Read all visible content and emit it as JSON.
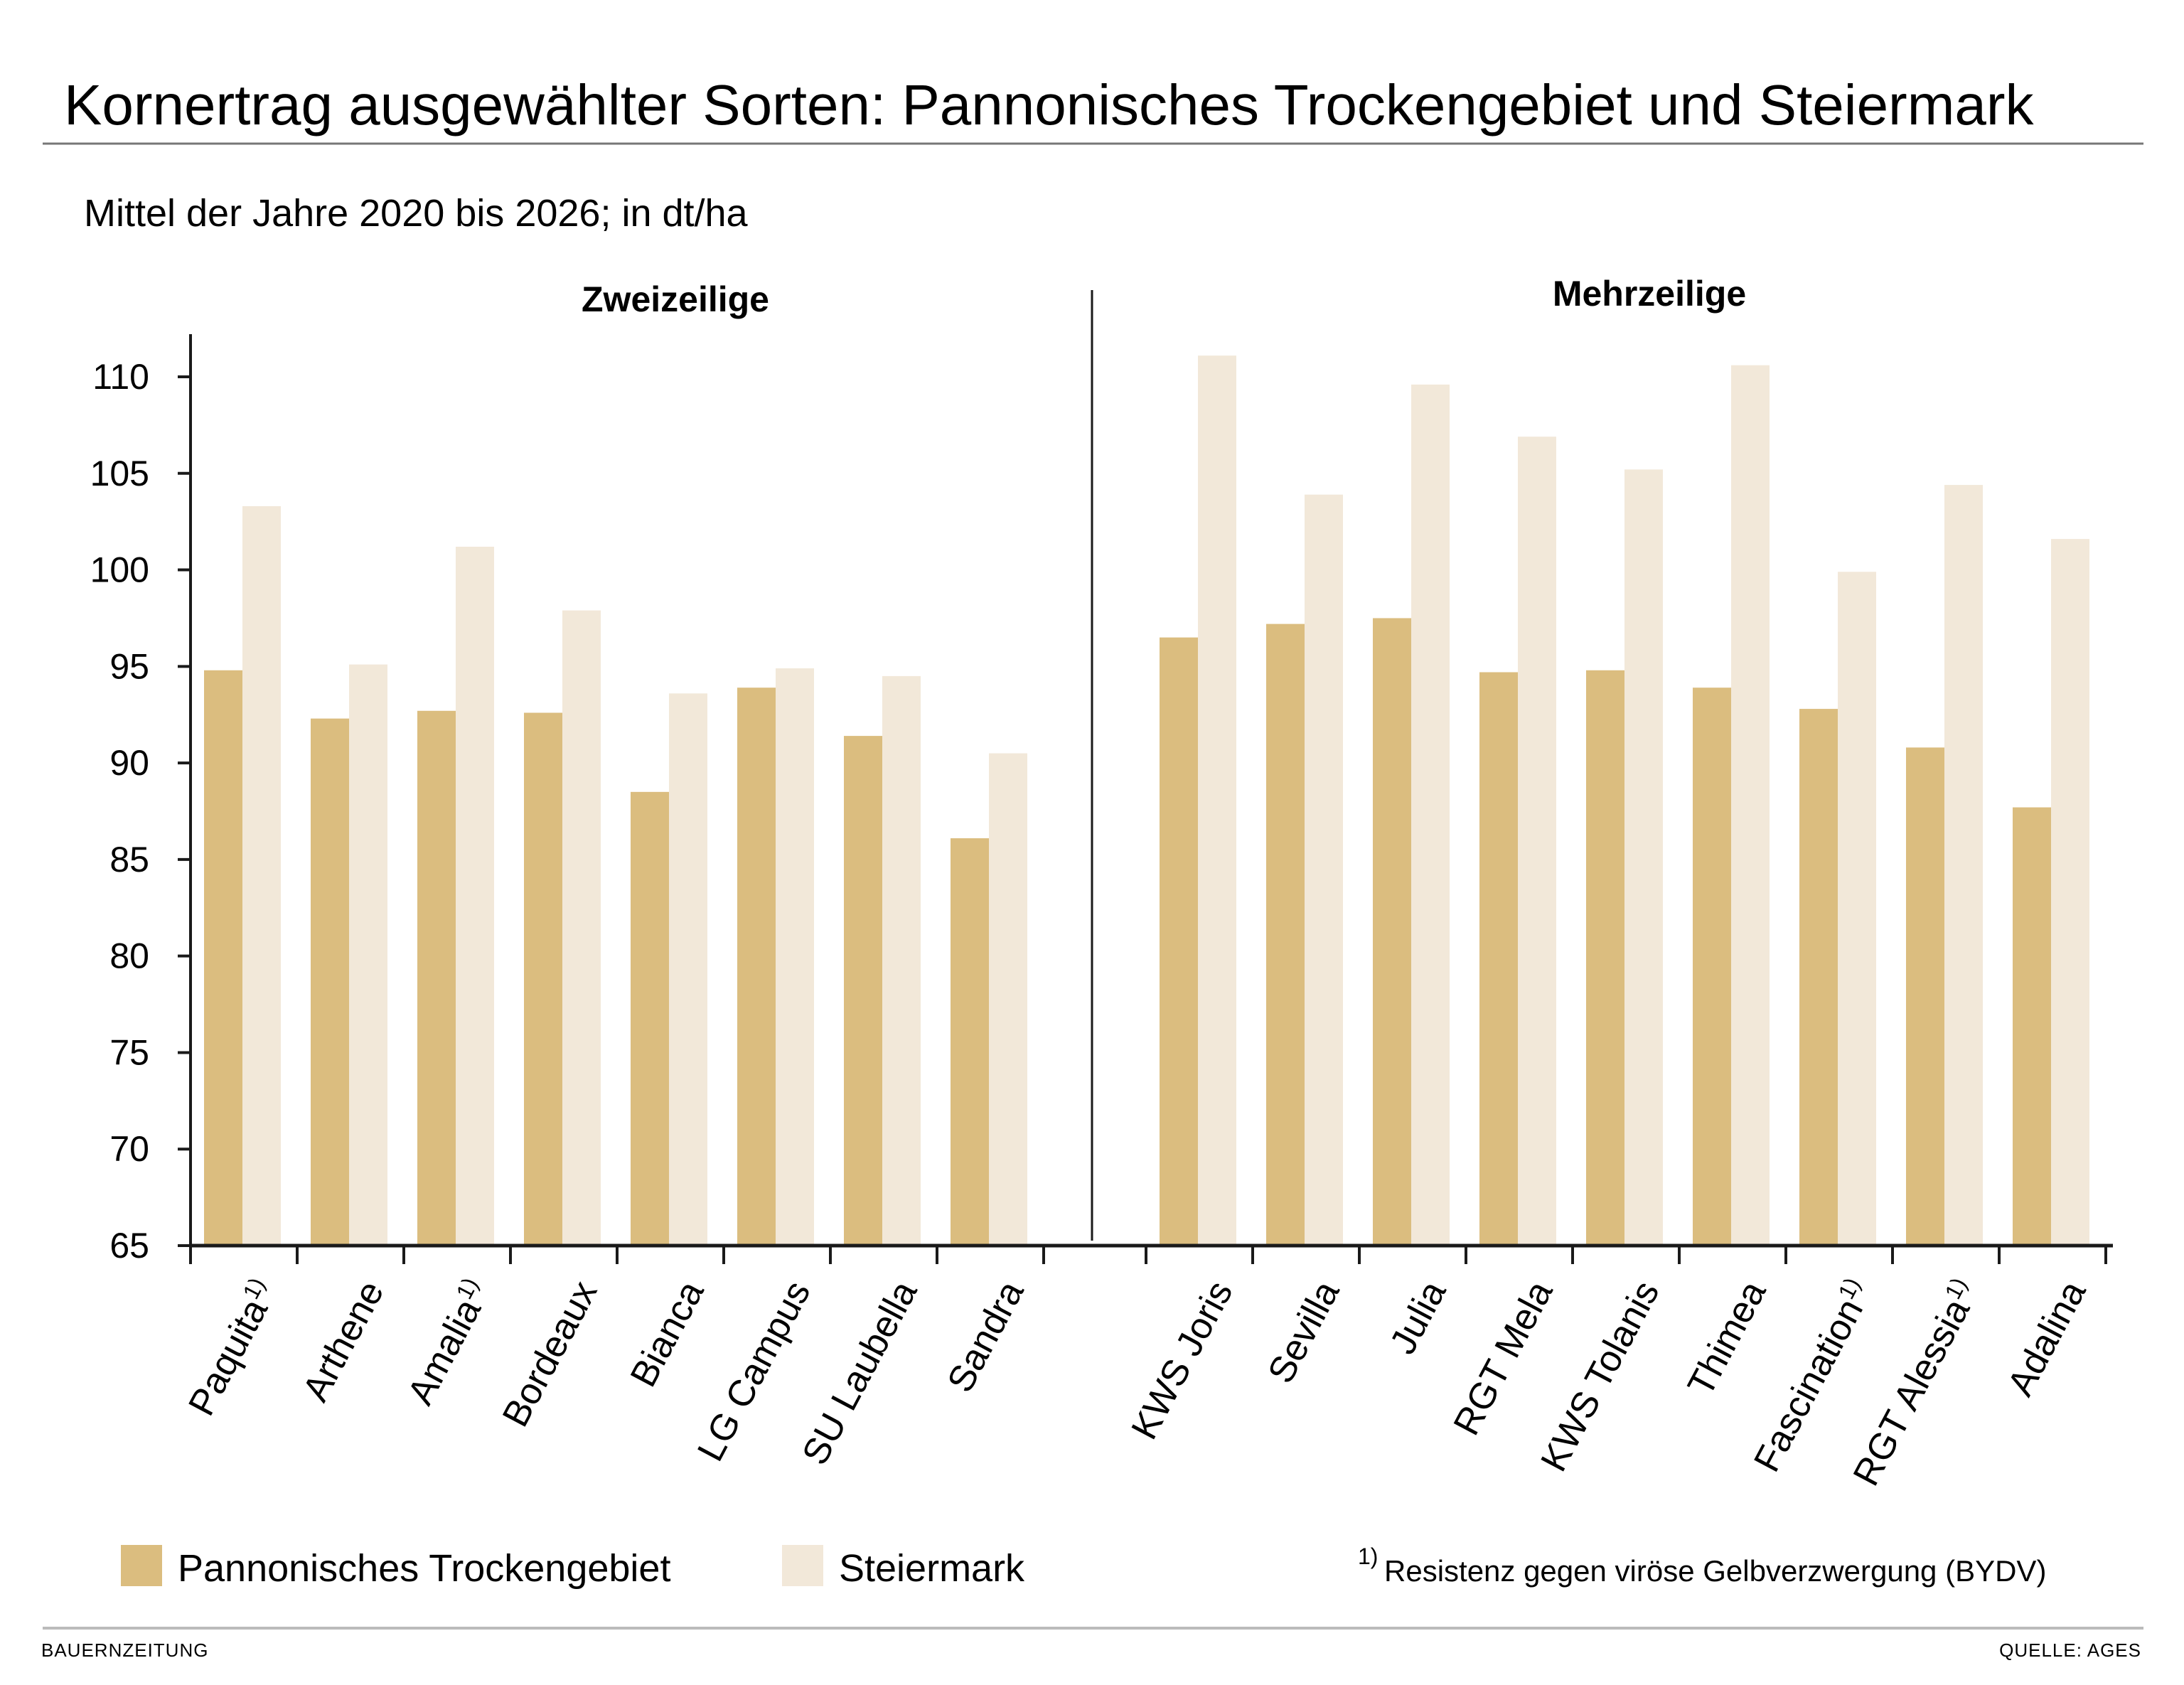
{
  "chart_data": {
    "type": "bar",
    "title": "Kornertrag ausgewählter Sorten: Pannonisches Trockengebiet und Steiermark",
    "subtitle": "Mittel der Jahre 2020 bis 2026; in dt/ha",
    "ylim": [
      65,
      112
    ],
    "yticks": [
      65,
      70,
      75,
      80,
      85,
      90,
      95,
      100,
      105,
      110
    ],
    "grid": false,
    "legend_position": "bottom-left",
    "colors": {
      "Pannonisches Trockengebiet": "#dbbd7f",
      "Steiermark": "#f2e8d9"
    },
    "groups": [
      {
        "name": "Zweizeilige",
        "categories": [
          "Paquita",
          "Arthene",
          "Amalia",
          "Bordeaux",
          "Bianca",
          "LG Campus",
          "SU Laubella",
          "Sandra"
        ],
        "footnote_marks": [
          "1)",
          "",
          "1)",
          "",
          "",
          "",
          "",
          ""
        ],
        "series": [
          {
            "name": "Pannonisches Trockengebiet",
            "values": [
              94.8,
              92.3,
              92.7,
              92.6,
              88.5,
              93.9,
              91.4,
              86.1
            ]
          },
          {
            "name": "Steiermark",
            "values": [
              103.3,
              95.1,
              101.2,
              97.9,
              93.6,
              94.9,
              94.5,
              90.5
            ]
          }
        ]
      },
      {
        "name": "Mehrzeilige",
        "categories": [
          "KWS Joris",
          "Sevilla",
          "Julia",
          "RGT Mela",
          "KWS Tolanis",
          "Thimea",
          "Fascination",
          "RGT Alessia",
          "Adalina"
        ],
        "footnote_marks": [
          "",
          "",
          "",
          "",
          "",
          "",
          "1)",
          "1)",
          ""
        ],
        "series": [
          {
            "name": "Pannonisches Trockengebiet",
            "values": [
              96.5,
              97.2,
              97.5,
              94.7,
              94.8,
              93.9,
              92.8,
              90.8,
              87.7
            ]
          },
          {
            "name": "Steiermark",
            "values": [
              111.1,
              103.9,
              109.6,
              106.9,
              105.2,
              110.6,
              99.9,
              104.4,
              101.6
            ]
          }
        ]
      }
    ],
    "legend": [
      "Pannonisches Trockengebiet",
      "Steiermark"
    ],
    "footnote": "Resistenz gegen viröse Gelbverzwergung (BYDV)",
    "footnote_mark": "1)"
  },
  "footer": {
    "left": "BAUERNZEITUNG",
    "right": "QUELLE: AGES"
  }
}
